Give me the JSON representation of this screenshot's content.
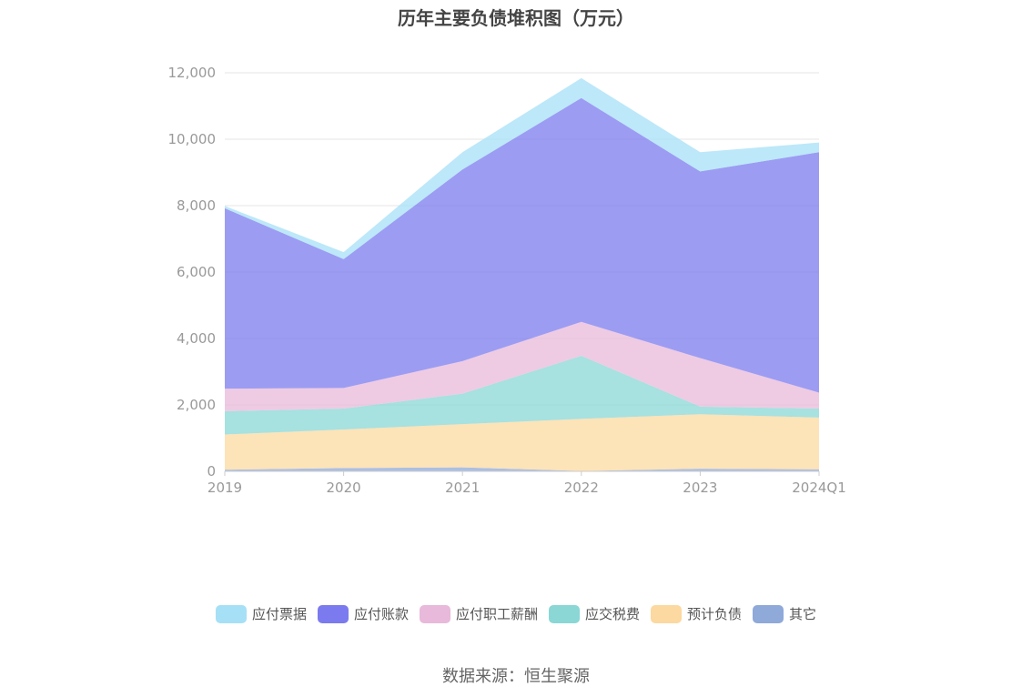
{
  "chart_data": {
    "type": "area",
    "stacked": true,
    "title": "历年主要负债堆积图（万元）",
    "x": [
      "2019",
      "2020",
      "2021",
      "2022",
      "2023",
      "2024Q1"
    ],
    "ylim": [
      0,
      12000
    ],
    "yticks": [
      0,
      2000,
      4000,
      6000,
      8000,
      10000,
      12000
    ],
    "ytick_labels": [
      "0",
      "2,000",
      "4,000",
      "6,000",
      "8,000",
      "10,000",
      "12,000"
    ],
    "grid": true,
    "legend_position": "bottom",
    "series": [
      {
        "name": "其它",
        "color": "#8fa9d9",
        "values": [
          50,
          100,
          120,
          10,
          80,
          60
        ]
      },
      {
        "name": "预计负债",
        "color": "#fcd9a0",
        "values": [
          1060,
          1160,
          1300,
          1570,
          1640,
          1560
        ]
      },
      {
        "name": "应交税费",
        "color": "#8ad7d6",
        "values": [
          700,
          630,
          920,
          1900,
          230,
          270
        ]
      },
      {
        "name": "应付职工薪酬",
        "color": "#e8b9da",
        "values": [
          680,
          620,
          980,
          1020,
          1460,
          480
        ]
      },
      {
        "name": "应付账款",
        "color": "#7b7bef",
        "values": [
          5430,
          3880,
          5770,
          6740,
          5620,
          7240
        ]
      },
      {
        "name": "应付票据",
        "color": "#a6e0f7",
        "values": [
          70,
          210,
          520,
          600,
          580,
          290
        ]
      }
    ]
  },
  "legend": {
    "items": [
      {
        "label": "应付票据",
        "color": "#a6e0f7"
      },
      {
        "label": "应付账款",
        "color": "#7b7bef"
      },
      {
        "label": "应付职工薪酬",
        "color": "#e8b9da"
      },
      {
        "label": "应交税费",
        "color": "#8ad7d6"
      },
      {
        "label": "预计负债",
        "color": "#fcd9a0"
      },
      {
        "label": "其它",
        "color": "#8fa9d9"
      }
    ]
  },
  "source_text": "数据来源：恒生聚源"
}
